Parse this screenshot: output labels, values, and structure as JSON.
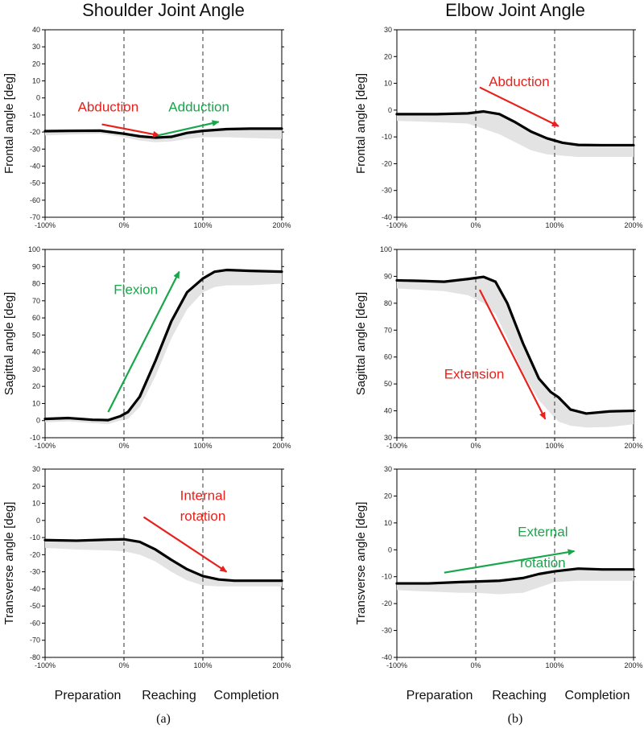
{
  "colors": {
    "red": "#e8211c",
    "green": "#19a64b",
    "band": "#e3e3e3",
    "line": "#000000"
  },
  "figure": {
    "column_titles": [
      "Shoulder Joint  Angle",
      "Elbow Joint  Angle"
    ],
    "phase_labels": [
      "Preparation",
      "Reaching",
      "Completion"
    ],
    "sublabels": [
      "(a)",
      "(b)"
    ]
  },
  "chart_data": [
    {
      "type": "line",
      "id": "shoulder-frontal",
      "col": 0,
      "row": 0,
      "ylabel": "Frontal angle [deg]",
      "xlim": [
        -100,
        200
      ],
      "ylim": [
        -70,
        40
      ],
      "yticks": [
        40,
        30,
        20,
        10,
        0,
        -10,
        -20,
        -30,
        -40,
        -50,
        -60,
        -70
      ],
      "xticks": [
        "-100%",
        "0%",
        "100%",
        "200%"
      ],
      "xtick_values": [
        -100,
        0,
        100,
        200
      ],
      "vlines": [
        0,
        100
      ],
      "mean": [
        [
          -100,
          -19.5
        ],
        [
          -70,
          -19.3
        ],
        [
          -30,
          -19.2
        ],
        [
          0,
          -21
        ],
        [
          20,
          -22.5
        ],
        [
          40,
          -23.3
        ],
        [
          60,
          -22.8
        ],
        [
          80,
          -20.5
        ],
        [
          100,
          -19.3
        ],
        [
          130,
          -18.3
        ],
        [
          160,
          -18
        ],
        [
          200,
          -18
        ]
      ],
      "band_lower": [
        [
          -100,
          -22
        ],
        [
          -70,
          -21.5
        ],
        [
          -30,
          -21
        ],
        [
          0,
          -23
        ],
        [
          20,
          -25
        ],
        [
          40,
          -26
        ],
        [
          60,
          -25.5
        ],
        [
          80,
          -24
        ],
        [
          100,
          -23
        ],
        [
          130,
          -23
        ],
        [
          160,
          -23.5
        ],
        [
          200,
          -24
        ]
      ],
      "band_upper": [
        [
          -100,
          -19.5
        ],
        [
          -70,
          -19.3
        ],
        [
          -30,
          -19.2
        ],
        [
          0,
          -21
        ],
        [
          20,
          -22.5
        ],
        [
          40,
          -23.3
        ],
        [
          60,
          -22.8
        ],
        [
          80,
          -20.5
        ],
        [
          100,
          -19.3
        ],
        [
          130,
          -18.3
        ],
        [
          160,
          -18
        ],
        [
          200,
          -18
        ]
      ],
      "annotations": [
        {
          "text": "Abduction",
          "color": "red",
          "label_at": [
            -20,
            -8
          ],
          "arrow": [
            [
              -28,
              -15.5
            ],
            [
              45,
              -22
            ]
          ]
        },
        {
          "text": "Adduction",
          "color": "green",
          "label_at": [
            95,
            -8
          ],
          "arrow": [
            [
              43,
              -22
            ],
            [
              120,
              -14
            ]
          ]
        }
      ]
    },
    {
      "type": "line",
      "id": "elbow-frontal",
      "col": 1,
      "row": 0,
      "ylabel": "Frontal angle [deg]",
      "xlim": [
        -100,
        200
      ],
      "ylim": [
        -40,
        30
      ],
      "yticks": [
        30,
        20,
        10,
        0,
        -10,
        -20,
        -30,
        -40
      ],
      "xticks": [
        "-100%",
        "0%",
        "100%",
        "200%"
      ],
      "xtick_values": [
        -100,
        0,
        100,
        200
      ],
      "vlines": [
        0,
        100
      ],
      "mean": [
        [
          -100,
          -1.5
        ],
        [
          -50,
          -1.5
        ],
        [
          -10,
          -1.2
        ],
        [
          10,
          -0.5
        ],
        [
          30,
          -1.5
        ],
        [
          50,
          -4.5
        ],
        [
          70,
          -8
        ],
        [
          90,
          -10.5
        ],
        [
          110,
          -12.2
        ],
        [
          130,
          -13
        ],
        [
          160,
          -13.1
        ],
        [
          200,
          -13.1
        ]
      ],
      "band_lower": [
        [
          -100,
          -4
        ],
        [
          -50,
          -4.5
        ],
        [
          -10,
          -5
        ],
        [
          10,
          -7
        ],
        [
          30,
          -9
        ],
        [
          50,
          -12
        ],
        [
          70,
          -15
        ],
        [
          90,
          -16.5
        ],
        [
          110,
          -17
        ],
        [
          130,
          -17.5
        ],
        [
          160,
          -17.5
        ],
        [
          200,
          -17.5
        ]
      ],
      "band_upper": [
        [
          -100,
          -1.5
        ],
        [
          -50,
          -1.5
        ],
        [
          -10,
          -1.2
        ],
        [
          10,
          -0.5
        ],
        [
          30,
          -1.5
        ],
        [
          50,
          -4.5
        ],
        [
          70,
          -8
        ],
        [
          90,
          -10.5
        ],
        [
          110,
          -12.2
        ],
        [
          130,
          -13
        ],
        [
          160,
          -13.1
        ],
        [
          200,
          -13.1
        ]
      ],
      "annotations": [
        {
          "text": "Abduction",
          "color": "red",
          "label_at": [
            55,
            9
          ],
          "arrow": [
            [
              5,
              8.5
            ],
            [
              105,
              -6
            ]
          ]
        }
      ]
    },
    {
      "type": "line",
      "id": "shoulder-sagittal",
      "col": 0,
      "row": 1,
      "ylabel": "Sagittal angle [deg]",
      "xlim": [
        -100,
        200
      ],
      "ylim": [
        -10,
        100
      ],
      "yticks": [
        100,
        90,
        80,
        70,
        60,
        50,
        40,
        30,
        20,
        10,
        0,
        -10
      ],
      "xticks": [
        "-100%",
        "0%",
        "100%",
        "200%"
      ],
      "xtick_values": [
        -100,
        0,
        100,
        200
      ],
      "vlines": [
        0,
        100
      ],
      "mean": [
        [
          -100,
          1
        ],
        [
          -70,
          1.5
        ],
        [
          -40,
          0.5
        ],
        [
          -20,
          0.3
        ],
        [
          -5,
          2.5
        ],
        [
          5,
          5
        ],
        [
          20,
          14
        ],
        [
          40,
          35
        ],
        [
          60,
          58
        ],
        [
          80,
          75
        ],
        [
          100,
          83
        ],
        [
          115,
          87
        ],
        [
          130,
          88
        ],
        [
          160,
          87.5
        ],
        [
          200,
          87
        ]
      ],
      "band_lower": [
        [
          -100,
          -1
        ],
        [
          -70,
          -0.5
        ],
        [
          -40,
          -1.5
        ],
        [
          -20,
          -2
        ],
        [
          -5,
          0
        ],
        [
          5,
          1
        ],
        [
          20,
          8
        ],
        [
          40,
          26
        ],
        [
          60,
          48
        ],
        [
          80,
          65
        ],
        [
          100,
          75
        ],
        [
          115,
          78
        ],
        [
          130,
          79
        ],
        [
          160,
          79
        ],
        [
          200,
          80
        ]
      ],
      "band_upper": [
        [
          -100,
          1
        ],
        [
          -70,
          1.5
        ],
        [
          -40,
          0.5
        ],
        [
          -20,
          0.3
        ],
        [
          -5,
          2.5
        ],
        [
          5,
          5
        ],
        [
          20,
          14
        ],
        [
          40,
          35
        ],
        [
          60,
          58
        ],
        [
          80,
          75
        ],
        [
          100,
          83
        ],
        [
          115,
          87
        ],
        [
          130,
          88
        ],
        [
          160,
          87.5
        ],
        [
          200,
          87
        ]
      ],
      "annotations": [
        {
          "text": "Flexion",
          "color": "green",
          "label_at": [
            15,
            74
          ],
          "arrow": [
            [
              -20,
              5
            ],
            [
              70,
              87
            ]
          ]
        }
      ]
    },
    {
      "type": "line",
      "id": "elbow-sagittal",
      "col": 1,
      "row": 1,
      "ylabel": "Sagittal angle [deg]",
      "xlim": [
        -100,
        200
      ],
      "ylim": [
        30,
        100
      ],
      "yticks": [
        100,
        90,
        80,
        70,
        60,
        50,
        40,
        30
      ],
      "xticks": [
        "-100%",
        "0%",
        "100%",
        "200%"
      ],
      "xtick_values": [
        -100,
        0,
        100,
        200
      ],
      "vlines": [
        0,
        100
      ],
      "mean": [
        [
          -100,
          88.5
        ],
        [
          -70,
          88.3
        ],
        [
          -40,
          88
        ],
        [
          -10,
          89
        ],
        [
          10,
          89.8
        ],
        [
          25,
          88
        ],
        [
          40,
          80
        ],
        [
          60,
          65
        ],
        [
          80,
          52
        ],
        [
          95,
          47
        ],
        [
          105,
          45
        ],
        [
          120,
          40.5
        ],
        [
          140,
          39
        ],
        [
          170,
          39.8
        ],
        [
          200,
          40
        ]
      ],
      "band_lower": [
        [
          -100,
          85.5
        ],
        [
          -70,
          85
        ],
        [
          -40,
          84.5
        ],
        [
          -10,
          83
        ],
        [
          10,
          80
        ],
        [
          25,
          76
        ],
        [
          40,
          67
        ],
        [
          60,
          54
        ],
        [
          80,
          44
        ],
        [
          95,
          39
        ],
        [
          105,
          36
        ],
        [
          120,
          34.5
        ],
        [
          140,
          33.8
        ],
        [
          170,
          34
        ],
        [
          200,
          35
        ]
      ],
      "band_upper": [
        [
          -100,
          88.5
        ],
        [
          -70,
          88.3
        ],
        [
          -40,
          88
        ],
        [
          -10,
          89
        ],
        [
          10,
          89.8
        ],
        [
          25,
          88
        ],
        [
          40,
          80
        ],
        [
          60,
          65
        ],
        [
          80,
          52
        ],
        [
          95,
          47
        ],
        [
          105,
          45
        ],
        [
          120,
          40.5
        ],
        [
          140,
          39
        ],
        [
          170,
          39.8
        ],
        [
          200,
          40
        ]
      ],
      "annotations": [
        {
          "text": "Extension",
          "color": "red",
          "label_at": [
            -2,
            52
          ],
          "arrow": [
            [
              5,
              85
            ],
            [
              88,
              37
            ]
          ]
        }
      ]
    },
    {
      "type": "line",
      "id": "shoulder-transverse",
      "col": 0,
      "row": 2,
      "ylabel": "Transverse angle [deg]",
      "xlim": [
        -100,
        200
      ],
      "ylim": [
        -80,
        30
      ],
      "yticks": [
        30,
        20,
        10,
        0,
        -10,
        -20,
        -30,
        -40,
        -50,
        -60,
        -70,
        -80
      ],
      "xticks": [
        "-100%",
        "0%",
        "100%",
        "200%"
      ],
      "xtick_values": [
        -100,
        0,
        100,
        200
      ],
      "vlines": [
        0,
        100
      ],
      "mean": [
        [
          -100,
          -11.5
        ],
        [
          -60,
          -11.8
        ],
        [
          -20,
          -11.2
        ],
        [
          0,
          -11
        ],
        [
          20,
          -12.5
        ],
        [
          40,
          -17
        ],
        [
          60,
          -23
        ],
        [
          80,
          -28.5
        ],
        [
          100,
          -32.5
        ],
        [
          120,
          -34.5
        ],
        [
          140,
          -35.2
        ],
        [
          200,
          -35.2
        ]
      ],
      "band_lower": [
        [
          -100,
          -16
        ],
        [
          -60,
          -17
        ],
        [
          -20,
          -17.5
        ],
        [
          0,
          -18
        ],
        [
          20,
          -20
        ],
        [
          40,
          -24
        ],
        [
          60,
          -30
        ],
        [
          80,
          -35
        ],
        [
          100,
          -38
        ],
        [
          120,
          -38.5
        ],
        [
          140,
          -38.5
        ],
        [
          200,
          -38.5
        ]
      ],
      "band_upper": [
        [
          -100,
          -11.5
        ],
        [
          -60,
          -11.8
        ],
        [
          -20,
          -11.2
        ],
        [
          0,
          -11
        ],
        [
          20,
          -12.5
        ],
        [
          40,
          -17
        ],
        [
          60,
          -23
        ],
        [
          80,
          -28.5
        ],
        [
          100,
          -32.5
        ],
        [
          120,
          -34.5
        ],
        [
          140,
          -35.2
        ],
        [
          200,
          -35.2
        ]
      ],
      "annotations": [
        {
          "text": "Internal",
          "color": "red",
          "label_at": [
            100,
            12
          ],
          "arrow": [
            [
              25,
              2
            ],
            [
              130,
              -30
            ]
          ]
        },
        {
          "text": "rotation",
          "color": "red",
          "label_at": [
            100,
            0
          ],
          "arrow": null
        }
      ]
    },
    {
      "type": "line",
      "id": "elbow-transverse",
      "col": 1,
      "row": 2,
      "ylabel": "Transverse angle [deg]",
      "xlim": [
        -100,
        200
      ],
      "ylim": [
        -40,
        30
      ],
      "yticks": [
        30,
        20,
        10,
        0,
        -10,
        -20,
        -30,
        -40
      ],
      "xticks": [
        "-100%",
        "0%",
        "100%",
        "200%"
      ],
      "xtick_values": [
        -100,
        0,
        100,
        200
      ],
      "vlines": [
        0,
        100
      ],
      "mean": [
        [
          -100,
          -12.5
        ],
        [
          -60,
          -12.5
        ],
        [
          -20,
          -12
        ],
        [
          0,
          -11.8
        ],
        [
          30,
          -11.5
        ],
        [
          60,
          -10.5
        ],
        [
          80,
          -9
        ],
        [
          100,
          -8
        ],
        [
          130,
          -7
        ],
        [
          160,
          -7.3
        ],
        [
          200,
          -7.3
        ]
      ],
      "band_lower": [
        [
          -100,
          -15
        ],
        [
          -60,
          -15.5
        ],
        [
          -20,
          -16
        ],
        [
          0,
          -16
        ],
        [
          30,
          -16.5
        ],
        [
          60,
          -16
        ],
        [
          80,
          -14
        ],
        [
          100,
          -12
        ],
        [
          130,
          -11.5
        ],
        [
          160,
          -11.5
        ],
        [
          200,
          -11.5
        ]
      ],
      "band_upper": [
        [
          -100,
          -12.5
        ],
        [
          -60,
          -12.5
        ],
        [
          -20,
          -12
        ],
        [
          0,
          -11.8
        ],
        [
          30,
          -11.5
        ],
        [
          60,
          -10.5
        ],
        [
          80,
          -9
        ],
        [
          100,
          -8
        ],
        [
          130,
          -7
        ],
        [
          160,
          -7.3
        ],
        [
          200,
          -7.3
        ]
      ],
      "annotations": [
        {
          "text": "External",
          "color": "green",
          "label_at": [
            85,
            5
          ],
          "arrow": [
            [
              -40,
              -8.5
            ],
            [
              125,
              -0.5
            ]
          ]
        },
        {
          "text": "rotation",
          "color": "green",
          "label_at": [
            85,
            -6.5
          ],
          "arrow": null
        }
      ]
    }
  ]
}
